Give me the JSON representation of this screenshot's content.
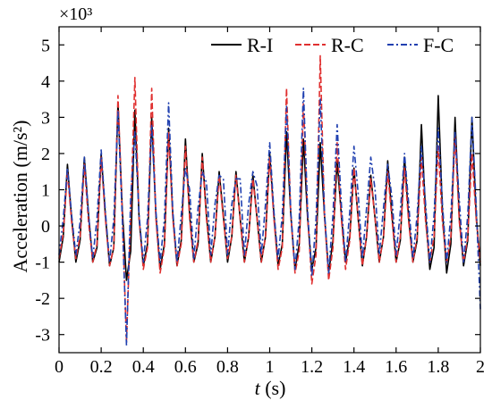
{
  "chart_data": {
    "type": "line",
    "xlabel_italic": "t",
    "xlabel_unit": " (s)",
    "ylabel": "Acceleration (m/s²)",
    "multiplier": "×10³",
    "xlim": [
      0,
      2
    ],
    "ylim": [
      -3.5,
      5.5
    ],
    "xticks": [
      {
        "v": 0,
        "label": "0"
      },
      {
        "v": 0.2,
        "label": "0.2"
      },
      {
        "v": 0.4,
        "label": "0.4"
      },
      {
        "v": 0.6,
        "label": "0.6"
      },
      {
        "v": 0.8,
        "label": "0.8"
      },
      {
        "v": 1.0,
        "label": "1"
      },
      {
        "v": 1.2,
        "label": "1.2"
      },
      {
        "v": 1.4,
        "label": "1.4"
      },
      {
        "v": 1.6,
        "label": "1.6"
      },
      {
        "v": 1.8,
        "label": "1.8"
      },
      {
        "v": 2.0,
        "label": "2"
      }
    ],
    "yticks": [
      {
        "v": -3,
        "label": "-3"
      },
      {
        "v": -2,
        "label": "-2"
      },
      {
        "v": -1,
        "label": "-1"
      },
      {
        "v": 0,
        "label": "0"
      },
      {
        "v": 1,
        "label": "1"
      },
      {
        "v": 2,
        "label": "2"
      },
      {
        "v": 3,
        "label": "3"
      },
      {
        "v": 4,
        "label": "4"
      },
      {
        "v": 5,
        "label": "5"
      }
    ],
    "grid": false,
    "legend_position": "top-right",
    "series": [
      {
        "name": "R-I",
        "color": "#000000",
        "style": "solid",
        "x": [
          0,
          0.02,
          0.04,
          0.06,
          0.08,
          0.1,
          0.12,
          0.14,
          0.16,
          0.18,
          0.2,
          0.22,
          0.24,
          0.26,
          0.28,
          0.3,
          0.32,
          0.34,
          0.36,
          0.38,
          0.4,
          0.42,
          0.44,
          0.46,
          0.48,
          0.5,
          0.52,
          0.54,
          0.56,
          0.58,
          0.6,
          0.62,
          0.64,
          0.66,
          0.68,
          0.7,
          0.72,
          0.74,
          0.76,
          0.78,
          0.8,
          0.82,
          0.84,
          0.86,
          0.88,
          0.9,
          0.92,
          0.94,
          0.96,
          0.98,
          1.0,
          1.02,
          1.04,
          1.06,
          1.08,
          1.1,
          1.12,
          1.14,
          1.16,
          1.18,
          1.2,
          1.22,
          1.24,
          1.26,
          1.28,
          1.3,
          1.32,
          1.34,
          1.36,
          1.38,
          1.4,
          1.42,
          1.44,
          1.46,
          1.48,
          1.5,
          1.52,
          1.54,
          1.56,
          1.58,
          1.6,
          1.62,
          1.64,
          1.66,
          1.68,
          1.7,
          1.72,
          1.74,
          1.76,
          1.78,
          1.8,
          1.82,
          1.84,
          1.86,
          1.88,
          1.9,
          1.92,
          1.94,
          1.96,
          1.98,
          2.0
        ],
        "y": [
          -1.0,
          -0.3,
          1.7,
          0.2,
          -1.0,
          -0.4,
          1.9,
          0.3,
          -1.0,
          -0.6,
          2.0,
          0.3,
          -1.1,
          -0.6,
          3.4,
          0.5,
          -1.5,
          -0.7,
          3.2,
          0.2,
          -1.1,
          -0.5,
          3.0,
          0.3,
          -1.2,
          -0.5,
          2.7,
          0.3,
          -1.1,
          -0.4,
          2.4,
          0.3,
          -1.0,
          -0.5,
          2.0,
          0.3,
          -1.0,
          -0.3,
          1.5,
          0.3,
          -1.0,
          -0.3,
          1.5,
          0.2,
          -1.0,
          -0.3,
          1.4,
          0.2,
          -1.0,
          -0.3,
          2.0,
          0.3,
          -1.1,
          -0.5,
          2.6,
          0.3,
          -1.2,
          -0.5,
          2.4,
          0.2,
          -1.2,
          -0.6,
          2.3,
          0.3,
          -1.3,
          -0.4,
          1.8,
          0.3,
          -1.0,
          -0.3,
          1.6,
          0.2,
          -1.1,
          -0.3,
          1.4,
          0.2,
          -1.0,
          -0.3,
          1.8,
          0.3,
          -1.0,
          -0.4,
          1.9,
          0.2,
          -1.0,
          -0.4,
          2.8,
          0.3,
          -1.2,
          -0.6,
          3.6,
          0.4,
          -1.3,
          -0.5,
          3.0,
          0.2,
          -1.1,
          -0.4,
          3.0,
          0.3,
          -1.1
        ]
      },
      {
        "name": "R-C",
        "color": "#e03030",
        "style": "dashed",
        "x": [
          0,
          0.02,
          0.04,
          0.06,
          0.08,
          0.1,
          0.12,
          0.14,
          0.16,
          0.18,
          0.2,
          0.22,
          0.24,
          0.26,
          0.28,
          0.3,
          0.32,
          0.34,
          0.36,
          0.38,
          0.4,
          0.42,
          0.44,
          0.46,
          0.48,
          0.5,
          0.52,
          0.54,
          0.56,
          0.58,
          0.6,
          0.62,
          0.64,
          0.66,
          0.68,
          0.7,
          0.72,
          0.74,
          0.76,
          0.78,
          0.8,
          0.82,
          0.84,
          0.86,
          0.88,
          0.9,
          0.92,
          0.94,
          0.96,
          0.98,
          1.0,
          1.02,
          1.04,
          1.06,
          1.08,
          1.1,
          1.12,
          1.14,
          1.16,
          1.18,
          1.2,
          1.22,
          1.24,
          1.26,
          1.28,
          1.3,
          1.32,
          1.34,
          1.36,
          1.38,
          1.4,
          1.42,
          1.44,
          1.46,
          1.48,
          1.5,
          1.52,
          1.54,
          1.56,
          1.58,
          1.6,
          1.62,
          1.64,
          1.66,
          1.68,
          1.7,
          1.72,
          1.74,
          1.76,
          1.78,
          1.8,
          1.82,
          1.84,
          1.86,
          1.88,
          1.9,
          1.92,
          1.94,
          1.96,
          1.98,
          2.0
        ],
        "y": [
          -0.9,
          -0.2,
          1.5,
          0.1,
          -0.9,
          -0.3,
          1.7,
          0.1,
          -1.0,
          -0.5,
          1.9,
          0.2,
          -1.1,
          -0.6,
          3.6,
          0.4,
          -3.2,
          0.3,
          4.1,
          0.2,
          -1.2,
          -0.6,
          3.8,
          0.2,
          -1.3,
          -0.6,
          2.6,
          0.2,
          -1.1,
          -0.5,
          2.2,
          0.2,
          -1.0,
          -0.4,
          1.9,
          0.2,
          -1.0,
          -0.3,
          1.4,
          0.2,
          -0.9,
          -0.3,
          1.4,
          0.2,
          -1.0,
          -0.3,
          1.3,
          0.2,
          -1.0,
          -0.3,
          1.9,
          0.2,
          -1.2,
          -0.6,
          3.8,
          0.3,
          -1.3,
          -0.7,
          3.4,
          0.3,
          -1.6,
          -0.8,
          4.7,
          0.3,
          -1.5,
          -0.6,
          2.3,
          0.2,
          -1.2,
          -0.4,
          1.6,
          0.2,
          -1.1,
          -0.3,
          1.3,
          0.2,
          -1.0,
          -0.3,
          1.5,
          0.2,
          -1.0,
          -0.3,
          1.6,
          0.1,
          -1.0,
          -0.3,
          1.9,
          0.1,
          -1.0,
          -0.3,
          2.2,
          0.1,
          -1.0,
          -0.3,
          2.5,
          0.1,
          -1.0,
          -0.3,
          2.0,
          0.2,
          -1.0
        ]
      },
      {
        "name": "F-C",
        "color": "#2040b0",
        "style": "dashdot",
        "x": [
          0,
          0.02,
          0.04,
          0.06,
          0.08,
          0.1,
          0.12,
          0.14,
          0.16,
          0.18,
          0.2,
          0.22,
          0.24,
          0.26,
          0.28,
          0.3,
          0.32,
          0.34,
          0.36,
          0.38,
          0.4,
          0.42,
          0.44,
          0.46,
          0.48,
          0.5,
          0.52,
          0.54,
          0.56,
          0.58,
          0.6,
          0.62,
          0.64,
          0.66,
          0.68,
          0.7,
          0.72,
          0.74,
          0.76,
          0.78,
          0.8,
          0.82,
          0.84,
          0.86,
          0.88,
          0.9,
          0.92,
          0.94,
          0.96,
          0.98,
          1.0,
          1.02,
          1.04,
          1.06,
          1.08,
          1.1,
          1.12,
          1.14,
          1.16,
          1.18,
          1.2,
          1.22,
          1.24,
          1.26,
          1.28,
          1.3,
          1.32,
          1.34,
          1.36,
          1.38,
          1.4,
          1.42,
          1.44,
          1.46,
          1.48,
          1.5,
          1.52,
          1.54,
          1.56,
          1.58,
          1.6,
          1.62,
          1.64,
          1.66,
          1.68,
          1.7,
          1.72,
          1.74,
          1.76,
          1.78,
          1.8,
          1.82,
          1.84,
          1.86,
          1.88,
          1.9,
          1.92,
          1.94,
          1.96,
          1.98,
          2.0
        ],
        "y": [
          -0.8,
          0.2,
          1.6,
          0.3,
          -0.8,
          0.1,
          1.9,
          0.3,
          -0.9,
          0.2,
          2.1,
          0.4,
          -1.0,
          0.2,
          3.2,
          0.3,
          -3.3,
          0.8,
          2.6,
          0.3,
          -1.0,
          0.2,
          2.8,
          0.4,
          -1.0,
          0.2,
          3.4,
          0.4,
          -1.0,
          0.3,
          1.6,
          1.0,
          -0.9,
          0.5,
          1.5,
          1.2,
          -0.8,
          0.6,
          1.4,
          1.3,
          -0.8,
          0.6,
          1.3,
          1.3,
          -0.8,
          0.6,
          1.5,
          1.1,
          -0.8,
          0.6,
          2.3,
          0.4,
          -0.9,
          0.3,
          3.3,
          0.4,
          -1.2,
          0.2,
          3.8,
          0.4,
          -1.4,
          0.2,
          3.5,
          0.4,
          -1.3,
          0.3,
          2.8,
          0.6,
          -1.0,
          0.4,
          2.2,
          0.9,
          -0.9,
          0.5,
          1.9,
          1.0,
          -0.8,
          0.5,
          1.7,
          0.8,
          -0.8,
          0.4,
          2.0,
          0.6,
          -0.9,
          0.3,
          2.2,
          0.6,
          -1.0,
          0.3,
          2.7,
          0.6,
          -1.0,
          0.3,
          2.6,
          0.7,
          -1.0,
          0.3,
          3.0,
          0.6,
          -2.3
        ]
      }
    ]
  }
}
